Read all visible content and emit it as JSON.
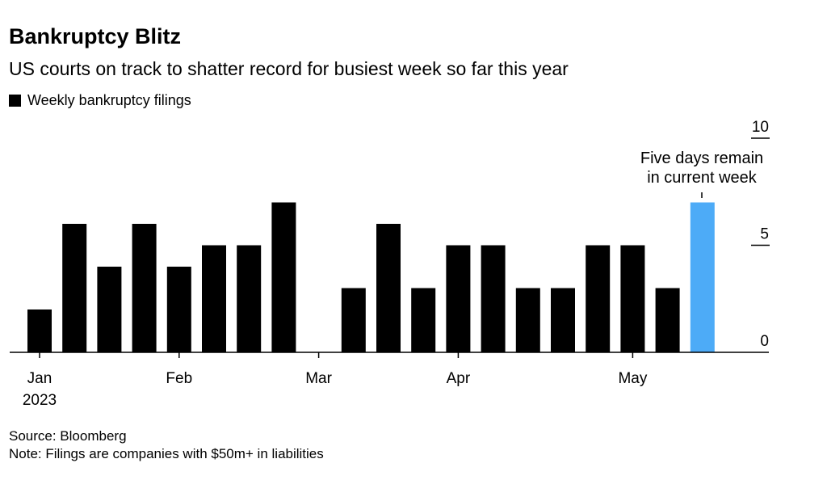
{
  "header": {
    "title": "Bankruptcy Blitz",
    "subtitle": "US courts on track to shatter record for busiest week so far this year"
  },
  "legend": {
    "label": "Weekly bankruptcy filings"
  },
  "annotation": {
    "line1": "Five days remain",
    "line2": "in current week"
  },
  "footer": {
    "source": "Source: Bloomberg",
    "note": "Note: Filings are companies with $50m+ in liabilities"
  },
  "colors": {
    "bar": "#000000",
    "current_bar": "#4dabf7",
    "axis": "#000000"
  },
  "chart_data": {
    "type": "bar",
    "title": "Bankruptcy Blitz",
    "subtitle": "US courts on track to shatter record for busiest week so far this year",
    "series": [
      {
        "name": "Weekly bankruptcy filings",
        "values": [
          2,
          6,
          4,
          6,
          4,
          5,
          5,
          7,
          0,
          3,
          6,
          3,
          5,
          5,
          3,
          3,
          5,
          5,
          3,
          7
        ]
      }
    ],
    "highlighted_index": 19,
    "x_tick_labels": [
      {
        "label": "Jan",
        "sublabel": "2023",
        "week": 0
      },
      {
        "label": "Feb",
        "week": 4
      },
      {
        "label": "Mar",
        "week": 8
      },
      {
        "label": "Apr",
        "week": 12
      },
      {
        "label": "May",
        "week": 17
      }
    ],
    "y_ticks": [
      0,
      5,
      10
    ],
    "ylim": [
      0,
      10
    ],
    "y_axis_position": "right",
    "legend_position": "top-left"
  }
}
